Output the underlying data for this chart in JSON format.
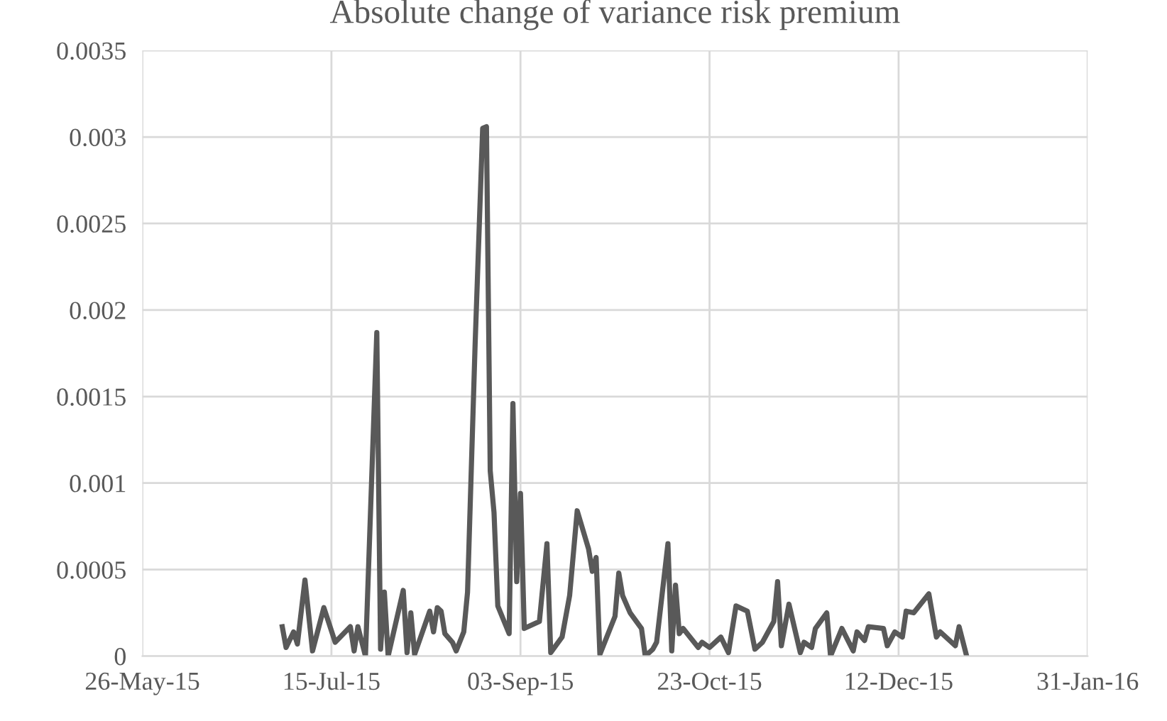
{
  "chart_data": {
    "type": "line",
    "title": "Absolute change of variance risk premium",
    "x": [
      "2015-07-02",
      "2015-07-03",
      "2015-07-05",
      "2015-07-06",
      "2015-07-08",
      "2015-07-10",
      "2015-07-13",
      "2015-07-16",
      "2015-07-20",
      "2015-07-21",
      "2015-07-22",
      "2015-07-24",
      "2015-07-27",
      "2015-07-28",
      "2015-07-29",
      "2015-07-30",
      "2015-08-03",
      "2015-08-04",
      "2015-08-05",
      "2015-08-06",
      "2015-08-10",
      "2015-08-11",
      "2015-08-12",
      "2015-08-13",
      "2015-08-14",
      "2015-08-16",
      "2015-08-17",
      "2015-08-19",
      "2015-08-20",
      "2015-08-22",
      "2015-08-24",
      "2015-08-25",
      "2015-08-26",
      "2015-08-27",
      "2015-08-28",
      "2015-08-31",
      "2015-09-01",
      "2015-09-02",
      "2015-09-03",
      "2015-09-04",
      "2015-09-08",
      "2015-09-10",
      "2015-09-11",
      "2015-09-14",
      "2015-09-16",
      "2015-09-18",
      "2015-09-21",
      "2015-09-22",
      "2015-09-23",
      "2015-09-24",
      "2015-09-28",
      "2015-09-29",
      "2015-09-30",
      "2015-10-02",
      "2015-10-05",
      "2015-10-06",
      "2015-10-08",
      "2015-10-09",
      "2015-10-12",
      "2015-10-13",
      "2015-10-14",
      "2015-10-15",
      "2015-10-16",
      "2015-10-20",
      "2015-10-21",
      "2015-10-23",
      "2015-10-26",
      "2015-10-28",
      "2015-10-30",
      "2015-11-02",
      "2015-11-04",
      "2015-11-06",
      "2015-11-09",
      "2015-11-10",
      "2015-11-11",
      "2015-11-13",
      "2015-11-16",
      "2015-11-17",
      "2015-11-19",
      "2015-11-20",
      "2015-11-23",
      "2015-11-24",
      "2015-11-27",
      "2015-11-30",
      "2015-12-01",
      "2015-12-03",
      "2015-12-04",
      "2015-12-08",
      "2015-12-09",
      "2015-12-11",
      "2015-12-13",
      "2015-12-14",
      "2015-12-16",
      "2015-12-20",
      "2015-12-22",
      "2015-12-23",
      "2015-12-27",
      "2015-12-28",
      "2015-12-30"
    ],
    "series": [
      {
        "color": "#595959",
        "values": [
          0.00017,
          5e-05,
          0.00014,
          7e-05,
          0.00044,
          3e-05,
          0.00028,
          8e-05,
          0.00017,
          3e-05,
          0.00017,
          0,
          0.00187,
          4e-05,
          0.00037,
          0,
          0.00038,
          2e-05,
          0.00025,
          1e-05,
          0.00026,
          0.00014,
          0.00028,
          0.00026,
          0.00013,
          8e-05,
          3e-05,
          0.00014,
          0.00037,
          0.0018,
          0.00305,
          0.00306,
          0.00107,
          0.00083,
          0.00029,
          0.00013,
          0.00146,
          0.00043,
          0.00094,
          0.00016,
          0.0002,
          0.00065,
          2e-05,
          0.00011,
          0.00035,
          0.00084,
          0.00062,
          0.00049,
          0.00057,
          1e-05,
          0.00023,
          0.00048,
          0.00035,
          0.00025,
          0.00016,
          0,
          4e-05,
          8e-05,
          0.00065,
          3e-05,
          0.00041,
          0.00013,
          0.00016,
          5e-05,
          8e-05,
          5e-05,
          0.00011,
          2e-05,
          0.00029,
          0.00026,
          4e-05,
          8e-05,
          0.0002,
          0.00043,
          6e-05,
          0.0003,
          2e-05,
          8e-05,
          5e-05,
          0.00016,
          0.00025,
          0,
          0.00016,
          3e-05,
          0.00014,
          9e-05,
          0.00017,
          0.00016,
          6e-05,
          0.00014,
          0.00011,
          0.00026,
          0.00025,
          0.00036,
          0.00011,
          0.00014,
          6e-05,
          0.00017,
          0
        ]
      }
    ],
    "xlim": [
      "2015-05-26",
      "2016-01-31"
    ],
    "xticks": [
      {
        "value": "2015-05-26",
        "label": "26-May-15"
      },
      {
        "value": "2015-07-15",
        "label": "15-Jul-15"
      },
      {
        "value": "2015-09-03",
        "label": "03-Sep-15"
      },
      {
        "value": "2015-10-23",
        "label": "23-Oct-15"
      },
      {
        "value": "2015-12-12",
        "label": "12-Dec-15"
      },
      {
        "value": "2016-01-31",
        "label": "31-Jan-16"
      }
    ],
    "ylim": [
      0,
      0.0035
    ],
    "yticks": [
      0,
      0.0005,
      0.001,
      0.0015,
      0.002,
      0.0025,
      0.003,
      0.0035
    ],
    "grid": true,
    "line_style": "solid",
    "marker": "none",
    "legend": false
  }
}
